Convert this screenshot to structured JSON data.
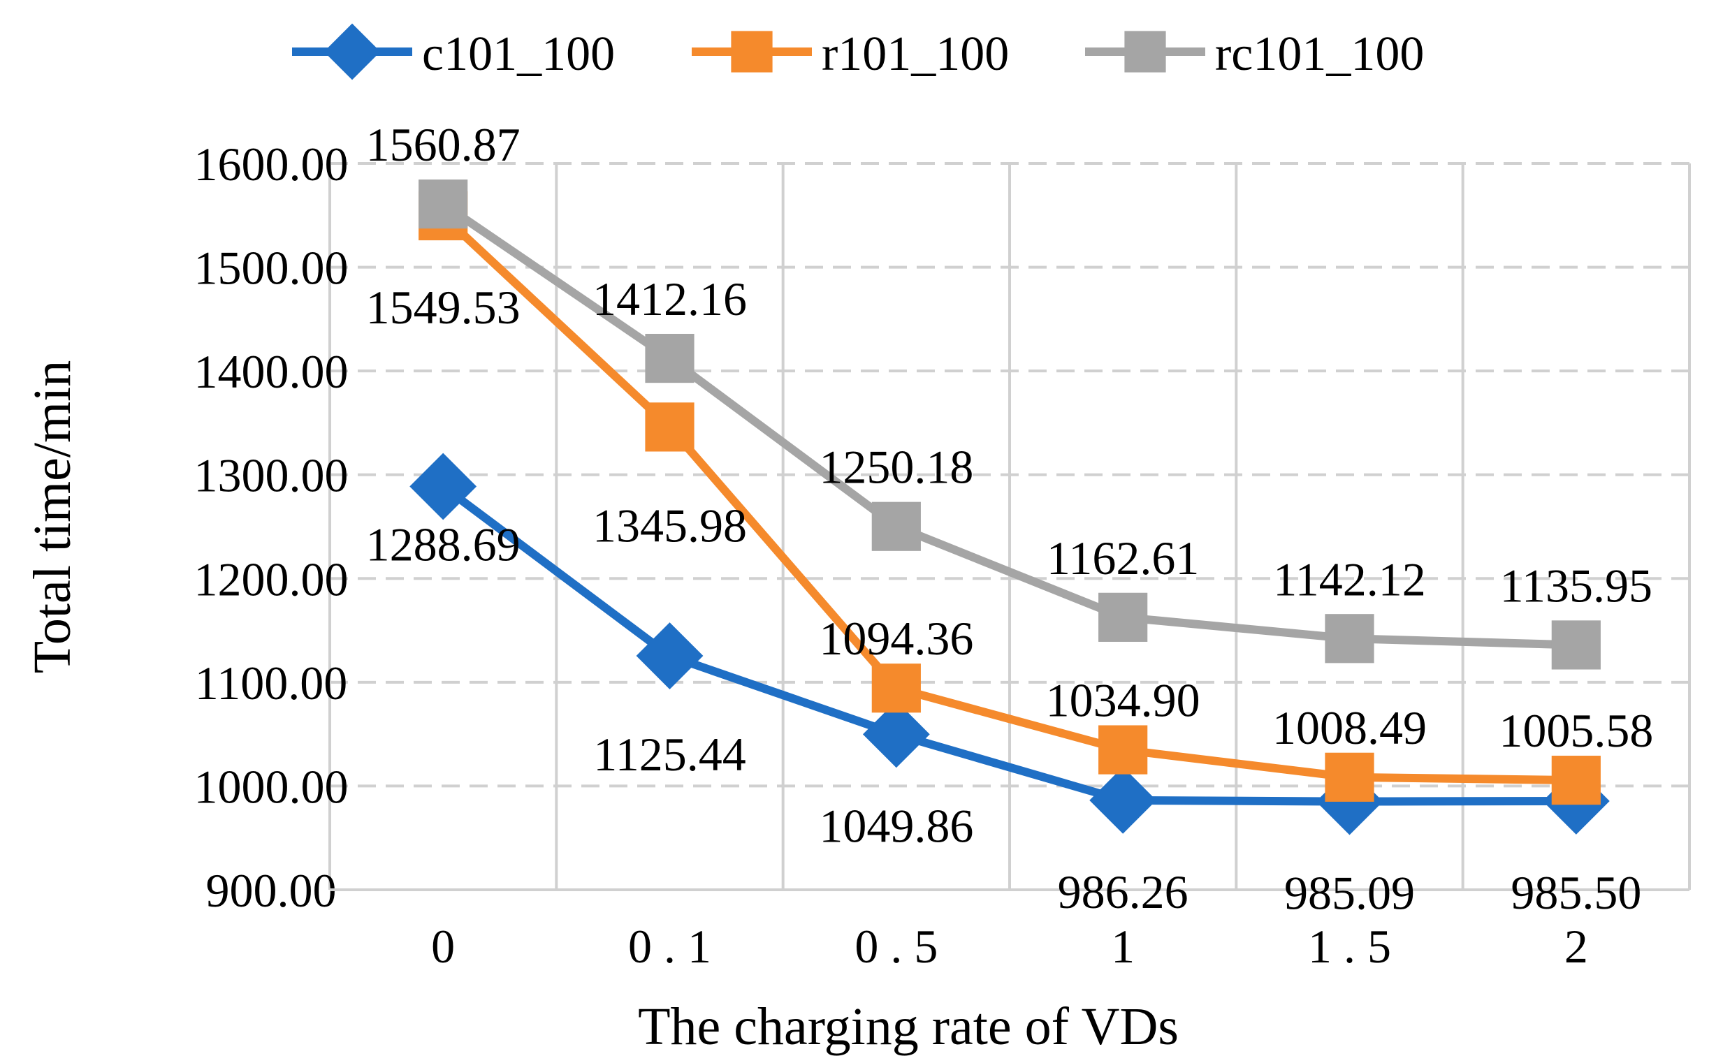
{
  "chart_data": {
    "type": "line",
    "title": "",
    "xlabel": "The charging rate of VDs",
    "ylabel": "Total time/min",
    "categories": [
      "0",
      "0.1",
      "0.5",
      "1",
      "1.5",
      "2"
    ],
    "category_tick_labels": [
      "0",
      "0 . 1",
      "0 . 5",
      "1",
      "1 . 5",
      "2"
    ],
    "ylim": [
      900,
      1600
    ],
    "ytick_values": [
      900,
      1000,
      1100,
      1200,
      1300,
      1400,
      1500,
      1600
    ],
    "ytick_labels": [
      "900.00",
      "1000.00",
      "1100.00",
      "1200.00",
      "1300.00",
      "1400.00",
      "1500.00",
      "1600.00"
    ],
    "grid": true,
    "legend_position": "top",
    "series": [
      {
        "name": "c101_100",
        "color": "#1F6FC5",
        "marker": "diamond",
        "values": [
          1288.69,
          1125.44,
          1049.86,
          986.26,
          985.09,
          985.5
        ],
        "labels": [
          "1288.69",
          "1125.44",
          "1049.86",
          "986.26",
          "985.09",
          "985.50"
        ]
      },
      {
        "name": "r101_100",
        "color": "#F58A2C",
        "marker": "square",
        "values": [
          1549.53,
          1345.98,
          1094.36,
          1034.9,
          1008.49,
          1005.58
        ],
        "labels": [
          "1549.53",
          "1345.98",
          "1094.36",
          "1034.90",
          "1008.49",
          "1005.58"
        ]
      },
      {
        "name": "rc101_100",
        "color": "#A5A5A5",
        "marker": "square",
        "values": [
          1560.87,
          1412.16,
          1250.18,
          1162.61,
          1142.12,
          1135.95
        ],
        "labels": [
          "1560.87",
          "1412.16",
          "1250.18",
          "1162.61",
          "1142.12",
          "1135.95"
        ]
      }
    ]
  }
}
